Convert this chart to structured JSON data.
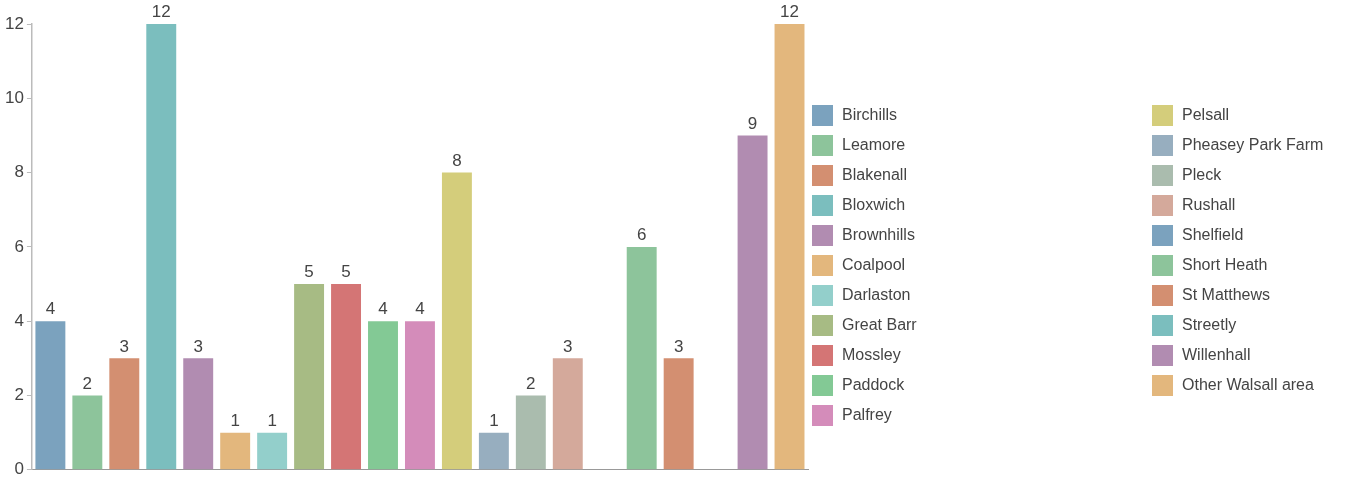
{
  "chart_data": {
    "type": "bar",
    "categories": [
      null,
      null,
      null,
      null,
      null,
      null,
      null,
      null,
      null,
      null,
      null,
      null,
      null,
      null,
      null,
      null,
      null,
      null,
      null,
      null,
      null
    ],
    "series": [
      {
        "name": "Birchills",
        "color": "#7ba2be",
        "values": [
          4,
          null,
          null,
          null,
          null,
          null,
          null,
          null,
          null,
          null,
          null,
          null,
          null,
          null,
          null,
          null,
          null,
          null,
          null,
          null,
          null
        ]
      },
      {
        "name": "Leamore",
        "color": "#8dc49b",
        "values": [
          null,
          2,
          null,
          null,
          null,
          null,
          null,
          null,
          null,
          null,
          null,
          null,
          null,
          null,
          null,
          null,
          null,
          null,
          null,
          null,
          null
        ]
      },
      {
        "name": "Blakenall",
        "color": "#d38f71",
        "values": [
          null,
          null,
          3,
          null,
          null,
          null,
          null,
          null,
          null,
          null,
          null,
          null,
          null,
          null,
          null,
          null,
          null,
          null,
          null,
          null,
          null
        ]
      },
      {
        "name": "Bloxwich",
        "color": "#7bbebe",
        "values": [
          null,
          null,
          null,
          12,
          null,
          null,
          null,
          null,
          null,
          null,
          null,
          null,
          null,
          null,
          null,
          null,
          null,
          null,
          null,
          null,
          null
        ]
      },
      {
        "name": "Brownhills",
        "color": "#b18cb1",
        "values": [
          null,
          null,
          null,
          null,
          3,
          null,
          null,
          null,
          null,
          null,
          null,
          null,
          null,
          null,
          null,
          null,
          null,
          null,
          null,
          null,
          null
        ]
      },
      {
        "name": "Coalpool",
        "color": "#e3b77d",
        "values": [
          null,
          null,
          null,
          null,
          null,
          1,
          null,
          null,
          null,
          null,
          null,
          null,
          null,
          null,
          null,
          null,
          null,
          null,
          null,
          null,
          null
        ]
      },
      {
        "name": "Darlaston",
        "color": "#93cfcb",
        "values": [
          null,
          null,
          null,
          null,
          null,
          null,
          1,
          null,
          null,
          null,
          null,
          null,
          null,
          null,
          null,
          null,
          null,
          null,
          null,
          null,
          null
        ]
      },
      {
        "name": "Great Barr",
        "color": "#a7bb84",
        "values": [
          null,
          null,
          null,
          null,
          null,
          null,
          null,
          5,
          null,
          null,
          null,
          null,
          null,
          null,
          null,
          null,
          null,
          null,
          null,
          null,
          null
        ]
      },
      {
        "name": "Mossley",
        "color": "#d47575",
        "values": [
          null,
          null,
          null,
          null,
          null,
          null,
          null,
          null,
          5,
          null,
          null,
          null,
          null,
          null,
          null,
          null,
          null,
          null,
          null,
          null,
          null
        ]
      },
      {
        "name": "Paddock",
        "color": "#83c995",
        "values": [
          null,
          null,
          null,
          null,
          null,
          null,
          null,
          null,
          null,
          4,
          null,
          null,
          null,
          null,
          null,
          null,
          null,
          null,
          null,
          null,
          null
        ]
      },
      {
        "name": "Palfrey",
        "color": "#d48cba",
        "values": [
          null,
          null,
          null,
          null,
          null,
          null,
          null,
          null,
          null,
          null,
          4,
          null,
          null,
          null,
          null,
          null,
          null,
          null,
          null,
          null,
          null
        ]
      },
      {
        "name": "Pelsall",
        "color": "#d4cd7b",
        "values": [
          null,
          null,
          null,
          null,
          null,
          null,
          null,
          null,
          null,
          null,
          null,
          8,
          null,
          null,
          null,
          null,
          null,
          null,
          null,
          null,
          null
        ]
      },
      {
        "name": "Pheasey Park Farm",
        "color": "#97aebf",
        "values": [
          null,
          null,
          null,
          null,
          null,
          null,
          null,
          null,
          null,
          null,
          null,
          null,
          1,
          null,
          null,
          null,
          null,
          null,
          null,
          null,
          null
        ]
      },
      {
        "name": "Pleck",
        "color": "#aabcae",
        "values": [
          null,
          null,
          null,
          null,
          null,
          null,
          null,
          null,
          null,
          null,
          null,
          null,
          null,
          2,
          null,
          null,
          null,
          null,
          null,
          null,
          null
        ]
      },
      {
        "name": "Rushall",
        "color": "#d4a99b",
        "values": [
          null,
          null,
          null,
          null,
          null,
          null,
          null,
          null,
          null,
          null,
          null,
          null,
          null,
          null,
          3,
          null,
          null,
          null,
          null,
          null,
          null
        ]
      },
      {
        "name": "Shelfield",
        "color": "#7ba2be",
        "values": [
          null,
          null,
          null,
          null,
          null,
          null,
          null,
          null,
          null,
          null,
          null,
          null,
          null,
          null,
          null,
          null,
          null,
          null,
          null,
          null,
          null
        ]
      },
      {
        "name": "Short Heath",
        "color": "#8dc49b",
        "values": [
          null,
          null,
          null,
          null,
          null,
          null,
          null,
          null,
          null,
          null,
          null,
          null,
          null,
          null,
          null,
          null,
          6,
          null,
          null,
          null,
          null
        ]
      },
      {
        "name": "St Matthews",
        "color": "#d38f71",
        "values": [
          null,
          null,
          null,
          null,
          null,
          null,
          null,
          null,
          null,
          null,
          null,
          null,
          null,
          null,
          null,
          null,
          null,
          3,
          null,
          null,
          null
        ]
      },
      {
        "name": "Streetly",
        "color": "#7bbebe",
        "values": [
          null,
          null,
          null,
          null,
          null,
          null,
          null,
          null,
          null,
          null,
          null,
          null,
          null,
          null,
          null,
          null,
          null,
          null,
          null,
          null,
          null
        ]
      },
      {
        "name": "Willenhall",
        "color": "#b18cb1",
        "values": [
          null,
          null,
          null,
          null,
          null,
          null,
          null,
          null,
          null,
          null,
          null,
          null,
          null,
          null,
          null,
          null,
          null,
          null,
          null,
          9,
          null
        ]
      },
      {
        "name": "Other Walsall area",
        "color": "#e3b77d",
        "values": [
          null,
          null,
          null,
          null,
          null,
          null,
          null,
          null,
          null,
          null,
          null,
          null,
          null,
          null,
          null,
          null,
          null,
          null,
          null,
          null,
          12
        ]
      }
    ],
    "ylim": [
      0,
      12
    ],
    "yticks": [
      0,
      2,
      4,
      6,
      8,
      10,
      12
    ],
    "grid": false,
    "legend": "right",
    "tick_labels": "y",
    "data_labels": true
  }
}
